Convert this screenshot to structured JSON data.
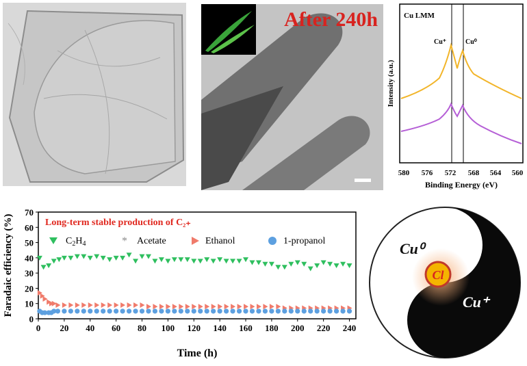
{
  "tem_panel": {
    "caption": "After 240h"
  },
  "xps_panel": {
    "title": "Cu LMM",
    "peak_labels": [
      "Cu⁺",
      "Cu⁰"
    ],
    "ylabel": "Intensity (a.u.)",
    "xlabel": "Binding Energy (eV)",
    "xticks": [
      "580",
      "576",
      "572",
      "568",
      "564",
      "560"
    ],
    "colors": {
      "upper": "#f2b52a",
      "lower": "#b55fd6"
    }
  },
  "fe_panel": {
    "annotation": "Long-term stable production of C₂₊",
    "colors": {
      "C2H4": "#2fbf5f",
      "Acetate": "#8a8a8a",
      "Ethanol": "#f07b6b",
      "1-propanol": "#5da0e0",
      "annotation": "#e0281f"
    }
  },
  "diagram": {
    "label_cu0": "Cu⁰",
    "label_cl": "Cl",
    "label_cu_plus": "Cu⁺"
  },
  "chart_data": {
    "type": "scatter",
    "title": "",
    "xlabel": "Time (h)",
    "ylabel": "Faradaic efficiency (%)",
    "xlim": [
      0,
      245
    ],
    "ylim": [
      0,
      70
    ],
    "xticks": [
      0,
      20,
      40,
      60,
      80,
      100,
      120,
      140,
      160,
      180,
      200,
      220,
      240
    ],
    "yticks": [
      0,
      10,
      20,
      30,
      40,
      50,
      60,
      70
    ],
    "series": [
      {
        "name": "C2H4",
        "label_main": "C",
        "label_sub1": "2",
        "label_mid": "H",
        "label_sub2": "4",
        "marker": "triangle-down",
        "x": [
          1,
          4,
          8,
          12,
          16,
          20,
          25,
          30,
          35,
          40,
          45,
          50,
          55,
          60,
          65,
          70,
          75,
          80,
          85,
          90,
          95,
          100,
          105,
          110,
          115,
          120,
          125,
          130,
          135,
          140,
          145,
          150,
          155,
          160,
          165,
          170,
          175,
          180,
          185,
          190,
          195,
          200,
          205,
          210,
          215,
          220,
          225,
          230,
          235,
          240
        ],
        "y": [
          40,
          34,
          35,
          38,
          39,
          40,
          40,
          41,
          41,
          40,
          41,
          40,
          39,
          40,
          40,
          42,
          38,
          41,
          41,
          38,
          39,
          38,
          39,
          39,
          39,
          38,
          38,
          39,
          38,
          39,
          38,
          38,
          38,
          39,
          37,
          37,
          36,
          36,
          34,
          34,
          36,
          37,
          36,
          33,
          35,
          37,
          36,
          35,
          36,
          35
        ]
      },
      {
        "name": "Acetate",
        "marker": "star",
        "x": [],
        "y": []
      },
      {
        "name": "Ethanol",
        "marker": "triangle-right",
        "x": [
          1,
          3,
          5,
          8,
          10,
          12,
          15,
          20,
          25,
          30,
          35,
          40,
          45,
          50,
          55,
          60,
          65,
          70,
          75,
          80,
          85,
          90,
          95,
          100,
          105,
          110,
          115,
          120,
          125,
          130,
          135,
          140,
          145,
          150,
          155,
          160,
          165,
          170,
          175,
          180,
          185,
          190,
          195,
          200,
          205,
          210,
          215,
          220,
          225,
          230,
          235,
          240
        ],
        "y": [
          17,
          15,
          13,
          11,
          10,
          10,
          9,
          9,
          9,
          9,
          9,
          9,
          9,
          9,
          9,
          9,
          9,
          9,
          9,
          9,
          8,
          8,
          8,
          8,
          8,
          8,
          8,
          8,
          8,
          8,
          8,
          8,
          8,
          8,
          8,
          8,
          8,
          8,
          8,
          8,
          8,
          7,
          7,
          7,
          7,
          7,
          7,
          7,
          7,
          7,
          7,
          7
        ]
      },
      {
        "name": "1-propanol",
        "marker": "circle",
        "x": [
          1,
          3,
          5,
          8,
          10,
          12,
          15,
          20,
          25,
          30,
          35,
          40,
          45,
          50,
          55,
          60,
          65,
          70,
          75,
          80,
          85,
          90,
          95,
          100,
          105,
          110,
          115,
          120,
          125,
          130,
          135,
          140,
          145,
          150,
          155,
          160,
          165,
          170,
          175,
          180,
          185,
          190,
          195,
          200,
          205,
          210,
          215,
          220,
          225,
          230,
          235,
          240
        ],
        "y": [
          5,
          4,
          4,
          4,
          4,
          5,
          5,
          5,
          5,
          5,
          5,
          5,
          5,
          5,
          5,
          5,
          5,
          5,
          5,
          5,
          5,
          5,
          5,
          5,
          5,
          5,
          5,
          5,
          5,
          5,
          5,
          5,
          5,
          5,
          5,
          5,
          5,
          5,
          5,
          5,
          5,
          5,
          5,
          5,
          5,
          5,
          5,
          5,
          5,
          5,
          5,
          5
        ]
      }
    ]
  }
}
